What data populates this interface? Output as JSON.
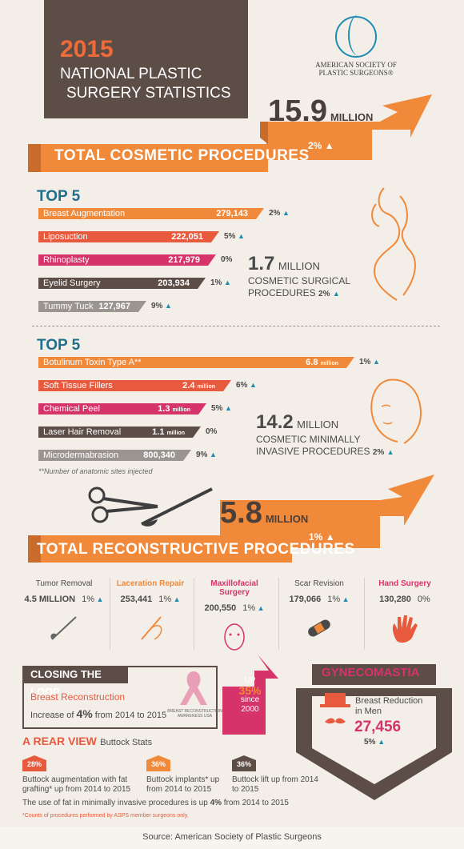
{
  "header": {
    "year": "2015",
    "line1": "NATIONAL PLASTIC",
    "line2": "SURGERY STATISTICS"
  },
  "logo": {
    "line1": "AMERICAN SOCIETY OF",
    "line2": "PLASTIC SURGEONS®"
  },
  "cosmetic": {
    "total_number": "15.9",
    "total_unit": "MILLION",
    "total_change": "2%",
    "banner": "TOTAL COSMETIC PROCEDURES"
  },
  "surgical": {
    "heading": "TOP 5",
    "items": [
      {
        "label": "Breast Augmentation",
        "value": "279,143",
        "change": "2%",
        "color": "#f0893a",
        "fraction": 1.0
      },
      {
        "label": "Liposuction",
        "value": "222,051",
        "change": "5%",
        "color": "#e85a3e",
        "fraction": 0.795
      },
      {
        "label": "Rhinoplasty",
        "value": "217,979",
        "change": "0%",
        "color": "#d6336a",
        "fraction": 0.781
      },
      {
        "label": "Eyelid Surgery",
        "value": "203,934",
        "change": "1%",
        "color": "#5c4d47",
        "fraction": 0.731
      },
      {
        "label": "Tummy Tuck",
        "value": "127,967",
        "change": "9%",
        "color": "#9b9592",
        "fraction": 0.458
      }
    ],
    "summary_number": "1.7",
    "summary_unit": "MILLION",
    "summary_line1": "COSMETIC SURGICAL",
    "summary_line2": "PROCEDURES",
    "summary_change": "2%"
  },
  "minimally": {
    "heading": "TOP 5",
    "items": [
      {
        "label": "Botulinum Toxin Type A**",
        "value": "6.8",
        "unit": "million",
        "change": "1%",
        "color": "#f0893a",
        "fraction": 1.0
      },
      {
        "label": "Soft Tissue Fillers",
        "value": "2.4",
        "unit": "million",
        "change": "6%",
        "color": "#e85a3e",
        "fraction": 0.6
      },
      {
        "label": "Chemical Peel",
        "value": "1.3",
        "unit": "million",
        "change": "5%",
        "color": "#d6336a",
        "fraction": 0.52
      },
      {
        "label": "Laser Hair Removal",
        "value": "1.1",
        "unit": "million",
        "change": "0%",
        "color": "#5c4d47",
        "fraction": 0.5
      },
      {
        "label": "Microdermabrasion",
        "value": "800,340",
        "unit": "",
        "change": "9%",
        "color": "#9b9592",
        "fraction": 0.47
      }
    ],
    "footnote": "**Number of anatomic sites injected",
    "summary_number": "14.2",
    "summary_unit": "MILLION",
    "summary_line1": "COSMETIC MINIMALLY",
    "summary_line2": "INVASIVE PROCEDURES",
    "summary_change": "2%"
  },
  "reconstructive": {
    "total_number": "5.8",
    "total_unit": "MILLION",
    "total_change": "1%",
    "banner": "TOTAL RECONSTRUCTIVE PROCEDURES",
    "items": [
      {
        "name": "Tumor Removal",
        "value": "4.5 MILLION",
        "change": "1%",
        "color": "#4a4a4a",
        "icon": "scalpel-icon"
      },
      {
        "name": "Laceration Repair",
        "value": "253,441",
        "change": "1%",
        "color": "#f0893a",
        "icon": "needle-thread-icon"
      },
      {
        "name": "Maxillofacial Surgery",
        "value": "200,550",
        "change": "1%",
        "color": "#d6336a",
        "icon": "face-icon"
      },
      {
        "name": "Scar Revision",
        "value": "179,066",
        "change": "1%",
        "color": "#4a4a4a",
        "icon": "bandage-icon"
      },
      {
        "name": "Hand Surgery",
        "value": "130,280",
        "change": "0%",
        "color": "#d6336a",
        "icon": "hand-icon"
      }
    ]
  },
  "closing_loop": {
    "title": "CLOSING THE LOOP",
    "subtitle": "Breast Reconstruction",
    "increase_prefix": "Increase of",
    "increase_value": "4%",
    "increase_suffix": "from 2014 to 2015",
    "up_label": "UP",
    "up_value": "35%",
    "up_since": "since",
    "up_year": "2000",
    "ribbon_caption": "BREAST RECONSTRUCTION AWARENESS USA"
  },
  "gynecomastia": {
    "title": "GYNECOMASTIA",
    "line1": "Breast Reduction",
    "line2": "in Men",
    "value": "27,456",
    "change": "5%"
  },
  "rear_view": {
    "title": "A REAR VIEW",
    "subtitle": "Buttock Stats",
    "items": [
      {
        "pct": "28%",
        "text1": "Buttock augmentation with fat",
        "text2": "grafting* up from 2014 to 2015",
        "color": "#e85a3e"
      },
      {
        "pct": "36%",
        "text1": "Buttock implants* up",
        "text2": "from 2014 to 2015",
        "color": "#f0893a"
      },
      {
        "pct": "36%",
        "text1": "Buttock lift up from 2014",
        "text2": "to 2015",
        "color": "#5c4d47"
      }
    ],
    "fat_prefix": "The use of fat in minimally invasive procedures is up",
    "fat_value": "4%",
    "fat_suffix": "from 2014 to 2015",
    "footnote": "*Counts of procedures performed by ASPS member surgeons only."
  },
  "source": "Source: American Society of Plastic Surgeons"
}
